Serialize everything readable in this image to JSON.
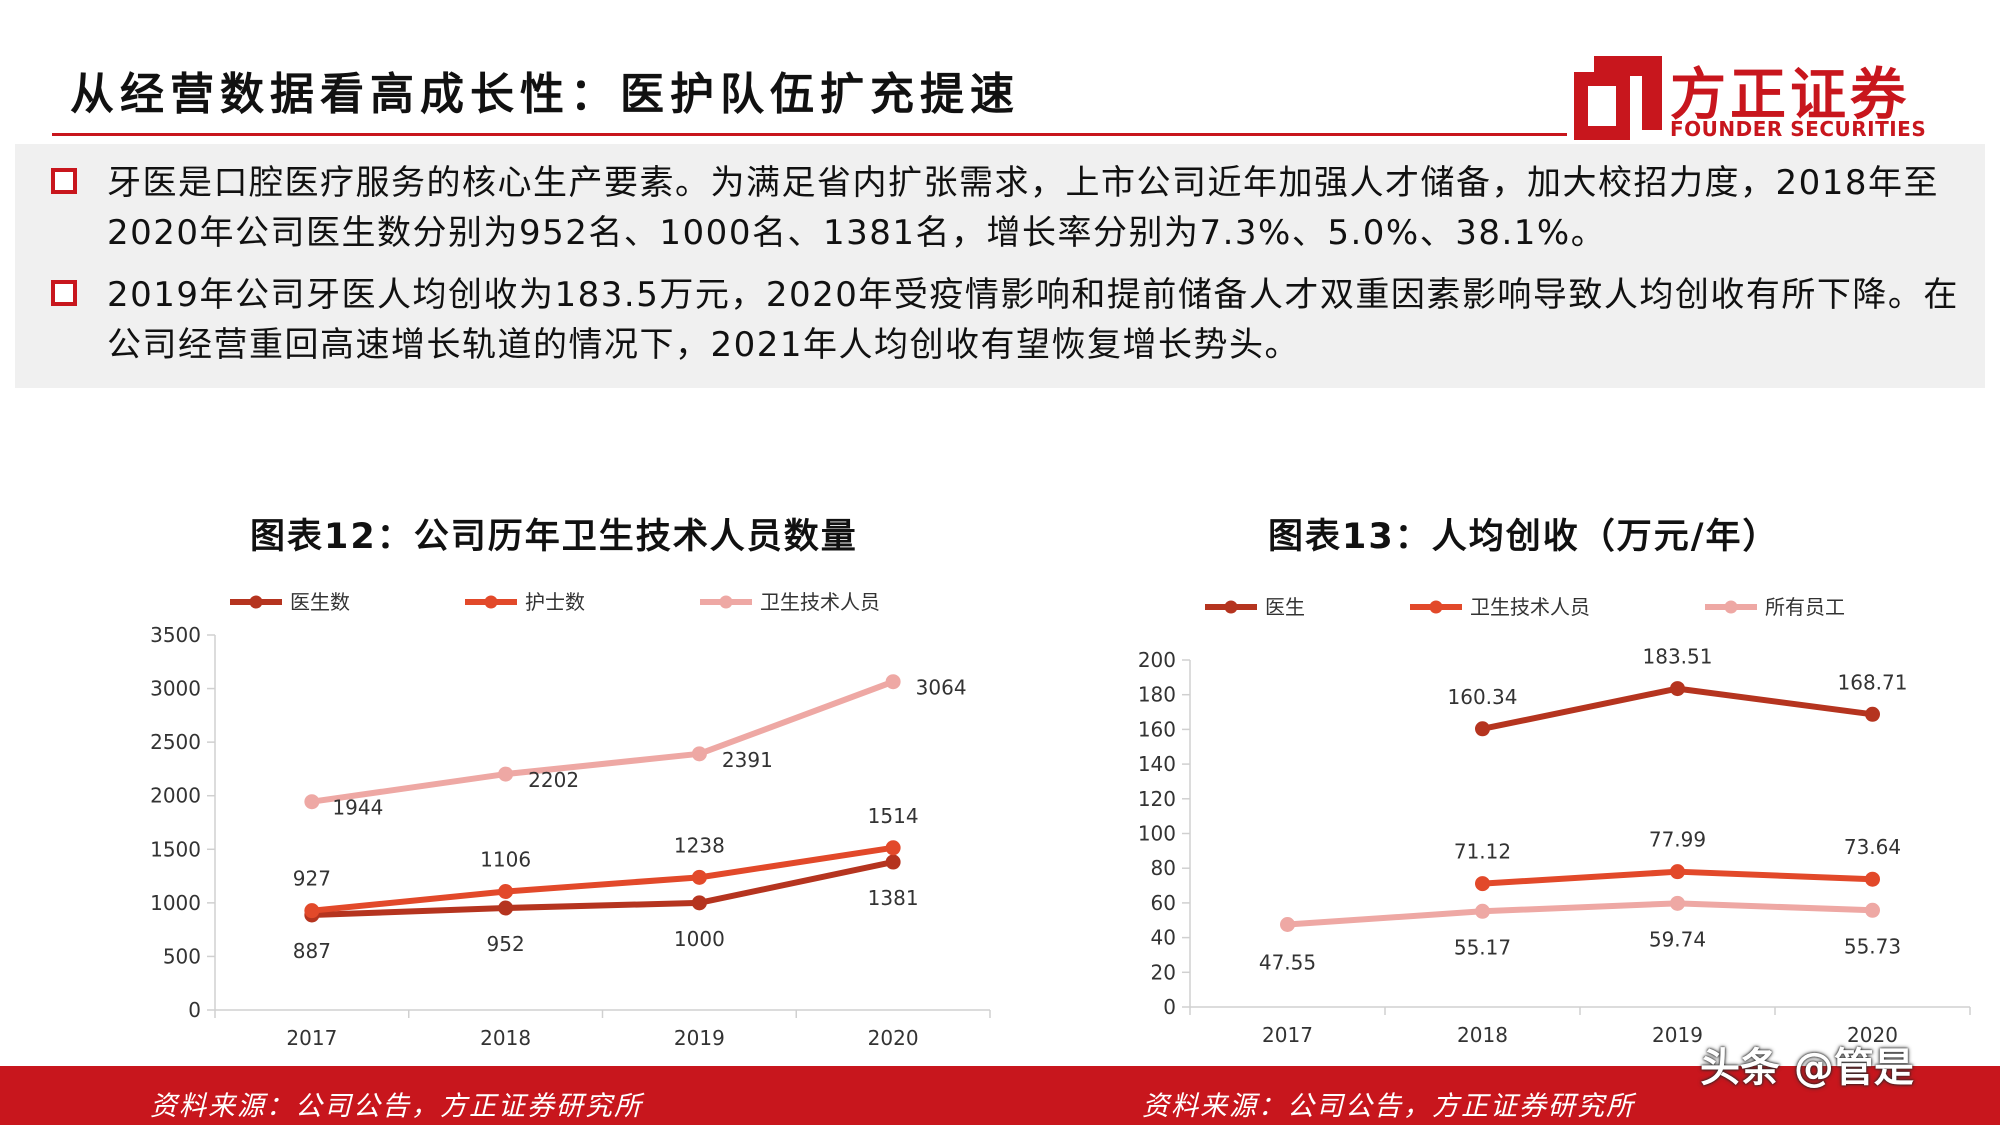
{
  "page": {
    "title": "从经营数据看高成长性：医护队伍扩充提速",
    "logo": {
      "cn": "方正证券",
      "en": "FOUNDER SECURITIES"
    },
    "bullets": [
      "牙医是口腔医疗服务的核心生产要素。为满足省内扩张需求，上市公司近年加强人才储备，加大校招力度，2018年至2020年公司医生数分别为952名、1000名、1381名，增长率分别为7.3%、5.0%、38.1%。",
      "2019年公司牙医人均创收为183.5万元，2020年受疫情影响和提前储备人才双重因素影响导致人均创收有所下降。在公司经营重回高速增长轨道的情况下，2021年人均创收有望恢复增长势头。"
    ],
    "watermark": "头条 @管是",
    "colors": {
      "accent": "#c8161d",
      "doctor": "#b5341f",
      "nurse": "#e2492a",
      "tech": "#eea8a4"
    }
  },
  "chart_data": [
    {
      "type": "line",
      "title": "图表12：公司历年卫生技术人员数量",
      "source": "资料来源：公司公告，方正证券研究所",
      "categories": [
        "2017",
        "2018",
        "2019",
        "2020"
      ],
      "ylim": [
        0,
        3500
      ],
      "yticks": [
        "0",
        "500",
        "1000",
        "1500",
        "2000",
        "2500",
        "3000",
        "3500"
      ],
      "legend_position": "top",
      "series": [
        {
          "name": "医生数",
          "values": [
            887,
            952,
            1000,
            1381
          ],
          "labels": [
            "887",
            "952",
            "1000",
            "1381"
          ],
          "color": "#b5341f"
        },
        {
          "name": "护士数",
          "values": [
            927,
            1106,
            1238,
            1514
          ],
          "labels": [
            "927",
            "1106",
            "1238",
            "1514"
          ],
          "color": "#e2492a"
        },
        {
          "name": "卫生技术人员",
          "values": [
            1944,
            2202,
            2391,
            3064
          ],
          "labels": [
            "1944",
            "2202",
            "2391",
            "3064"
          ],
          "color": "#eea8a4"
        }
      ]
    },
    {
      "type": "line",
      "title": "图表13：人均创收（万元/年）",
      "source": "资料来源：公司公告，方正证券研究所",
      "categories": [
        "2017",
        "2018",
        "2019",
        "2020"
      ],
      "ylim": [
        0,
        200
      ],
      "yticks": [
        "0",
        "20",
        "40",
        "60",
        "80",
        "100",
        "120",
        "140",
        "160",
        "180",
        "200"
      ],
      "legend_position": "top",
      "series": [
        {
          "name": "医生",
          "values": [
            null,
            160.34,
            183.51,
            168.71
          ],
          "labels": [
            "",
            "160.34",
            "183.51",
            "168.71"
          ],
          "color": "#b5341f"
        },
        {
          "name": "卫生技术人员",
          "values": [
            null,
            71.12,
            77.99,
            73.64
          ],
          "labels": [
            "",
            "71.12",
            "77.99",
            "73.64"
          ],
          "color": "#e2492a"
        },
        {
          "name": "所有员工",
          "values": [
            47.55,
            55.17,
            59.74,
            55.73
          ],
          "labels": [
            "47.55",
            "55.17",
            "59.74",
            "55.73"
          ],
          "color": "#eea8a4"
        }
      ]
    }
  ]
}
